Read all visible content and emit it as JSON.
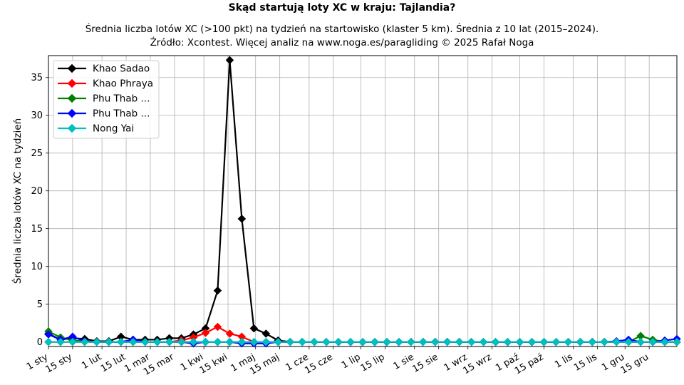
{
  "chart_data": {
    "type": "line",
    "title": "Skąd startują loty XC w kraju: Tajlandia?",
    "subtitle_lines": [
      "Średnia liczba lotów XC (>100 pkt) na tydzień na startowisko (klaster 5 km). Średnia z 10 lat (2015–2024).",
      "Źródło: Xcontest. Więcej analiz na www.noga.es/paragliding © 2025 Rafał Noga"
    ],
    "ylabel": "Średnia liczba lotów XC na tydzień",
    "xlabel": "",
    "ylim": [
      -0.6,
      37.9
    ],
    "xlim": [
      0,
      52
    ],
    "yticks": [
      0,
      5,
      10,
      15,
      20,
      25,
      30,
      35
    ],
    "grid": true,
    "legend_position": "top-left",
    "xticks": [
      {
        "x": 0,
        "label": "1 sty"
      },
      {
        "x": 2,
        "label": "15 sty"
      },
      {
        "x": 4.43,
        "label": "1 lut"
      },
      {
        "x": 6.43,
        "label": "15 lut"
      },
      {
        "x": 8.43,
        "label": "1 mar"
      },
      {
        "x": 10.43,
        "label": "15 mar"
      },
      {
        "x": 12.86,
        "label": "1 kwi"
      },
      {
        "x": 14.86,
        "label": "15 kwi"
      },
      {
        "x": 17.14,
        "label": "1 maj"
      },
      {
        "x": 19.14,
        "label": "15 maj"
      },
      {
        "x": 21.57,
        "label": "1 cze"
      },
      {
        "x": 23.57,
        "label": "15 cze"
      },
      {
        "x": 25.86,
        "label": "1 lip"
      },
      {
        "x": 27.86,
        "label": "15 lip"
      },
      {
        "x": 30.29,
        "label": "1 sie"
      },
      {
        "x": 32.29,
        "label": "15 sie"
      },
      {
        "x": 34.71,
        "label": "1 wrz"
      },
      {
        "x": 36.71,
        "label": "15 wrz"
      },
      {
        "x": 39,
        "label": "1 paź"
      },
      {
        "x": 41,
        "label": "15 paź"
      },
      {
        "x": 43.43,
        "label": "1 lis"
      },
      {
        "x": 45.43,
        "label": "15 lis"
      },
      {
        "x": 47.71,
        "label": "1 gru"
      },
      {
        "x": 49.71,
        "label": "15 gru"
      }
    ],
    "x": [
      0,
      1,
      2,
      3,
      4,
      5,
      6,
      7,
      8,
      9,
      10,
      11,
      12,
      13,
      14,
      15,
      16,
      17,
      18,
      19,
      20,
      21,
      22,
      23,
      24,
      25,
      26,
      27,
      28,
      29,
      30,
      31,
      32,
      33,
      34,
      35,
      36,
      37,
      38,
      39,
      40,
      41,
      42,
      43,
      44,
      45,
      46,
      47,
      48,
      49,
      50,
      51,
      52
    ],
    "series": [
      {
        "name": "Khao Sadao",
        "color": "#000000",
        "values": [
          1.1,
          0.3,
          0.5,
          0.4,
          0.1,
          0.1,
          0.7,
          0.3,
          0.3,
          0.3,
          0.5,
          0.5,
          1.0,
          1.8,
          6.8,
          37.3,
          16.3,
          1.8,
          1.1,
          0.2,
          0,
          0,
          0,
          0,
          0,
          0,
          0,
          0,
          0,
          0,
          0,
          0,
          0,
          0,
          0,
          0,
          0,
          0,
          0,
          0,
          0,
          0,
          0,
          0,
          0,
          0,
          0,
          0,
          0,
          0,
          0,
          0,
          0
        ]
      },
      {
        "name": "Khao Phraya",
        "color": "#ff0000",
        "values": [
          0,
          0,
          0,
          0,
          0,
          0,
          0,
          0,
          0,
          0,
          0,
          0.2,
          0.6,
          1.2,
          2.0,
          1.1,
          0.7,
          0,
          0,
          0,
          0,
          0,
          0,
          0,
          0,
          0,
          0,
          0,
          0,
          0,
          0,
          0,
          0,
          0,
          0,
          0,
          0,
          0,
          0,
          0,
          0,
          0,
          0,
          0,
          0,
          0,
          0,
          0,
          0,
          0,
          0,
          0,
          0
        ]
      },
      {
        "name": "Phu Thab ...",
        "color": "#008000",
        "values": [
          1.4,
          0.6,
          0.2,
          0.1,
          0,
          0,
          0,
          0,
          0,
          0,
          0,
          0,
          0,
          0,
          0,
          0,
          0,
          0,
          0,
          0,
          0,
          0,
          0,
          0,
          0,
          0,
          0,
          0,
          0,
          0,
          0,
          0,
          0,
          0,
          0,
          0,
          0,
          0,
          0,
          0,
          0,
          0,
          0,
          0,
          0,
          0,
          0,
          0,
          0,
          0.8,
          0.3,
          0,
          0
        ]
      },
      {
        "name": "Phu Thab ...",
        "color": "#0000ff",
        "values": [
          1.0,
          0.3,
          0.7,
          0.1,
          0,
          0,
          0,
          0.3,
          0,
          0,
          0,
          0,
          -0.2,
          0,
          0,
          0,
          -0.2,
          -0.2,
          -0.2,
          0,
          0,
          0,
          0,
          0,
          0,
          0,
          0,
          0,
          0,
          0,
          0,
          0,
          0,
          0,
          0,
          0,
          0,
          0,
          0,
          0,
          0,
          0,
          0,
          0,
          0,
          0,
          0,
          0.1,
          0.3,
          0,
          0,
          0.2,
          0.4
        ]
      },
      {
        "name": "Nong Yai",
        "color": "#00bfbf",
        "values": [
          0,
          0,
          0,
          0,
          0,
          0,
          0,
          0,
          0,
          0,
          0,
          0,
          0,
          0,
          0,
          0,
          0,
          0,
          0,
          0,
          0,
          0,
          0,
          0,
          0,
          0,
          0,
          0,
          0,
          0,
          0,
          0,
          0,
          0,
          0,
          0,
          0,
          0,
          0,
          0,
          0,
          0,
          0,
          0,
          0,
          0,
          0,
          0,
          0,
          0,
          0,
          0,
          0
        ]
      }
    ]
  }
}
